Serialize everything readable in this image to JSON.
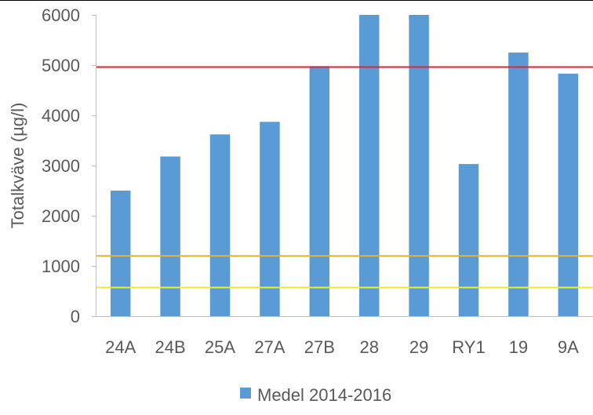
{
  "chart_data": {
    "type": "bar",
    "categories": [
      "24A",
      "24B",
      "25A",
      "27A",
      "27B",
      "28",
      "29",
      "RY1",
      "19",
      "9A"
    ],
    "series": [
      {
        "name": "Medel 2014-2016",
        "color": "#5b9bd5",
        "values": [
          2500,
          3180,
          3620,
          3870,
          4980,
          6000,
          6000,
          3030,
          5250,
          4830
        ]
      }
    ],
    "reference_lines": [
      {
        "y": 4960,
        "color": "#e8222b"
      },
      {
        "y": 1200,
        "color": "#f2b21b"
      },
      {
        "y": 570,
        "color": "#f4ea1e"
      }
    ],
    "ylabel": "Totalkväve (µg/l)",
    "xlabel": "",
    "ylim": [
      0,
      6000
    ],
    "yticks": [
      "0",
      "1000",
      "2000",
      "3000",
      "4000",
      "5000",
      "6000"
    ],
    "grid": false,
    "legend_position": "bottom"
  }
}
